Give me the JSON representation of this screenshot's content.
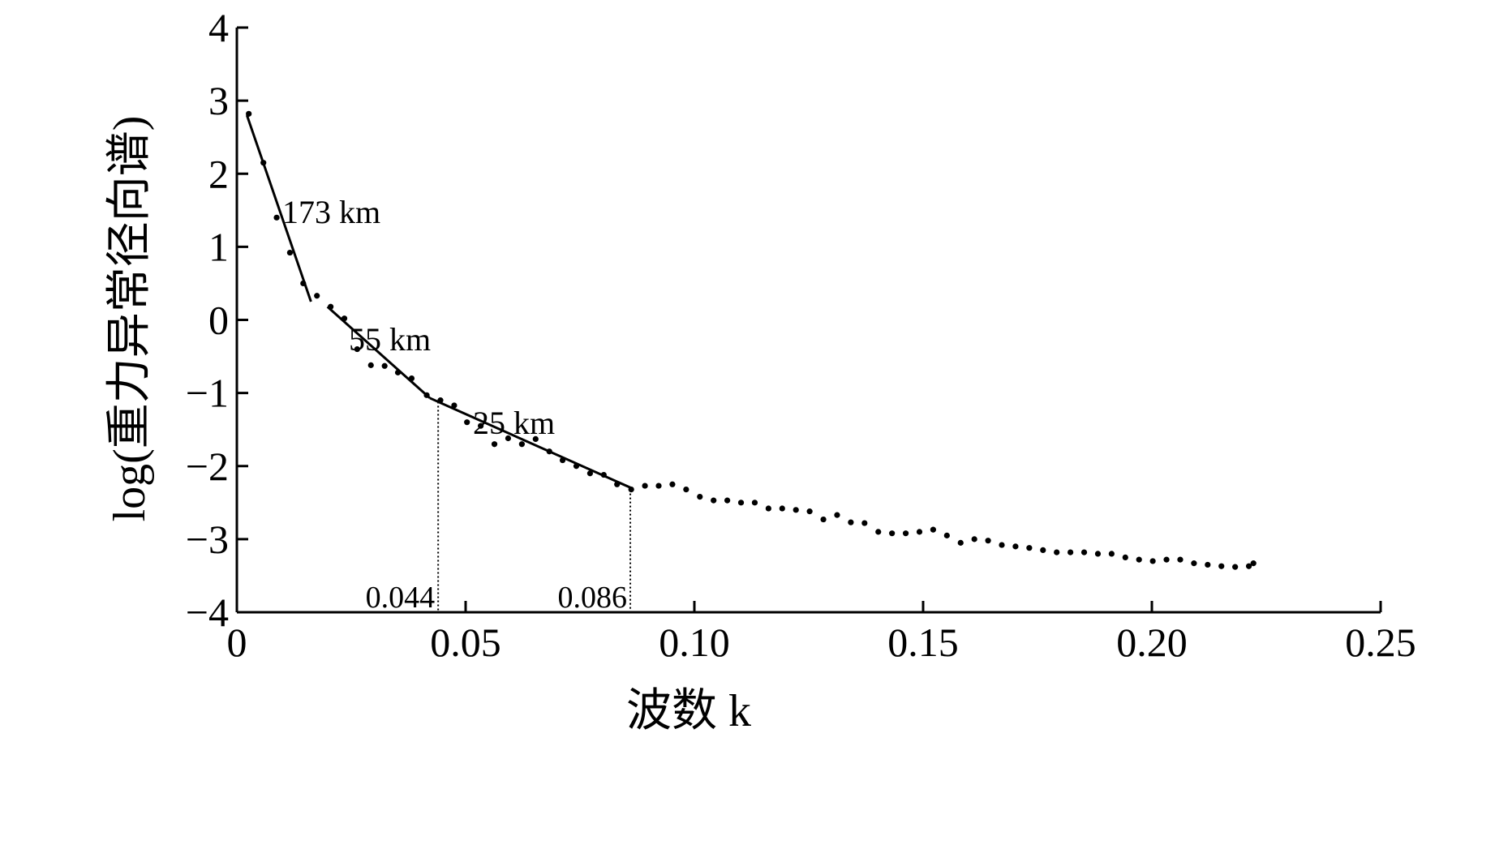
{
  "chart_data": {
    "type": "scatter",
    "xlabel": "波数 k",
    "ylabel": "log(重力异常径向谱)",
    "xlim": [
      0,
      0.25
    ],
    "ylim": [
      -4,
      4
    ],
    "x_ticks": [
      0,
      0.05,
      0.1,
      0.15,
      0.2,
      0.25
    ],
    "x_tick_labels": [
      "0",
      "0.05",
      "0.10",
      "0.15",
      "0.20",
      "0.25"
    ],
    "y_ticks": [
      4,
      3,
      2,
      1,
      0,
      -1,
      -2,
      -3,
      -4
    ],
    "y_tick_labels": [
      "4",
      "3",
      "2",
      "1",
      "0",
      "−1",
      "−2",
      "−3",
      "−4"
    ],
    "grid": false,
    "series": [
      {
        "points": [
          [
            0.0026,
            2.82
          ],
          [
            0.0058,
            2.15
          ],
          [
            0.0087,
            1.4
          ],
          [
            0.0116,
            0.92
          ],
          [
            0.0145,
            0.5
          ],
          [
            0.0175,
            0.33
          ],
          [
            0.0205,
            0.18
          ],
          [
            0.0235,
            0.02
          ],
          [
            0.0263,
            -0.4
          ],
          [
            0.0293,
            -0.62
          ],
          [
            0.0323,
            -0.63
          ],
          [
            0.0352,
            -0.72
          ],
          [
            0.0382,
            -0.8
          ],
          [
            0.0415,
            -1.03
          ],
          [
            0.0445,
            -1.1
          ],
          [
            0.0475,
            -1.17
          ],
          [
            0.0503,
            -1.4
          ],
          [
            0.0533,
            -1.45
          ],
          [
            0.0563,
            -1.7
          ],
          [
            0.0593,
            -1.62
          ],
          [
            0.0623,
            -1.7
          ],
          [
            0.0653,
            -1.63
          ],
          [
            0.0683,
            -1.8
          ],
          [
            0.0712,
            -1.92
          ],
          [
            0.0742,
            -2.0
          ],
          [
            0.0772,
            -2.1
          ],
          [
            0.0802,
            -2.12
          ],
          [
            0.0831,
            -2.25
          ],
          [
            0.0862,
            -2.32
          ],
          [
            0.0892,
            -2.27
          ],
          [
            0.0922,
            -2.27
          ],
          [
            0.0952,
            -2.25
          ],
          [
            0.0982,
            -2.32
          ],
          [
            0.1012,
            -2.42
          ],
          [
            0.1042,
            -2.47
          ],
          [
            0.1072,
            -2.47
          ],
          [
            0.1102,
            -2.5
          ],
          [
            0.1132,
            -2.5
          ],
          [
            0.1162,
            -2.58
          ],
          [
            0.1192,
            -2.58
          ],
          [
            0.1222,
            -2.6
          ],
          [
            0.1252,
            -2.62
          ],
          [
            0.1282,
            -2.73
          ],
          [
            0.1312,
            -2.67
          ],
          [
            0.1342,
            -2.77
          ],
          [
            0.1372,
            -2.78
          ],
          [
            0.1402,
            -2.9
          ],
          [
            0.1432,
            -2.92
          ],
          [
            0.1462,
            -2.92
          ],
          [
            0.1492,
            -2.9
          ],
          [
            0.1522,
            -2.87
          ],
          [
            0.1552,
            -2.95
          ],
          [
            0.1582,
            -3.05
          ],
          [
            0.1612,
            -3.0
          ],
          [
            0.1642,
            -3.02
          ],
          [
            0.1672,
            -3.08
          ],
          [
            0.1702,
            -3.1
          ],
          [
            0.1732,
            -3.12
          ],
          [
            0.1762,
            -3.15
          ],
          [
            0.1792,
            -3.18
          ],
          [
            0.1822,
            -3.18
          ],
          [
            0.1852,
            -3.18
          ],
          [
            0.1882,
            -3.2
          ],
          [
            0.1912,
            -3.2
          ],
          [
            0.1942,
            -3.25
          ],
          [
            0.1972,
            -3.28
          ],
          [
            0.2002,
            -3.3
          ],
          [
            0.2032,
            -3.28
          ],
          [
            0.2062,
            -3.28
          ],
          [
            0.2092,
            -3.33
          ],
          [
            0.2122,
            -3.35
          ],
          [
            0.2152,
            -3.37
          ],
          [
            0.2182,
            -3.38
          ],
          [
            0.2212,
            -3.37
          ],
          [
            0.2222,
            -3.33
          ]
        ]
      }
    ],
    "fit_segments": [
      {
        "label": "173 km",
        "from": [
          0.0022,
          2.8
        ],
        "to": [
          0.0162,
          0.25
        ]
      },
      {
        "label": "55 km",
        "from": [
          0.0198,
          0.18
        ],
        "to": [
          0.0422,
          -1.07
        ]
      },
      {
        "label": "25 km",
        "from": [
          0.0422,
          -1.07
        ],
        "to": [
          0.0862,
          -2.3
        ]
      }
    ],
    "markers": [
      {
        "x": 0.044,
        "label": "0.044"
      },
      {
        "x": 0.086,
        "label": "0.086"
      }
    ]
  }
}
